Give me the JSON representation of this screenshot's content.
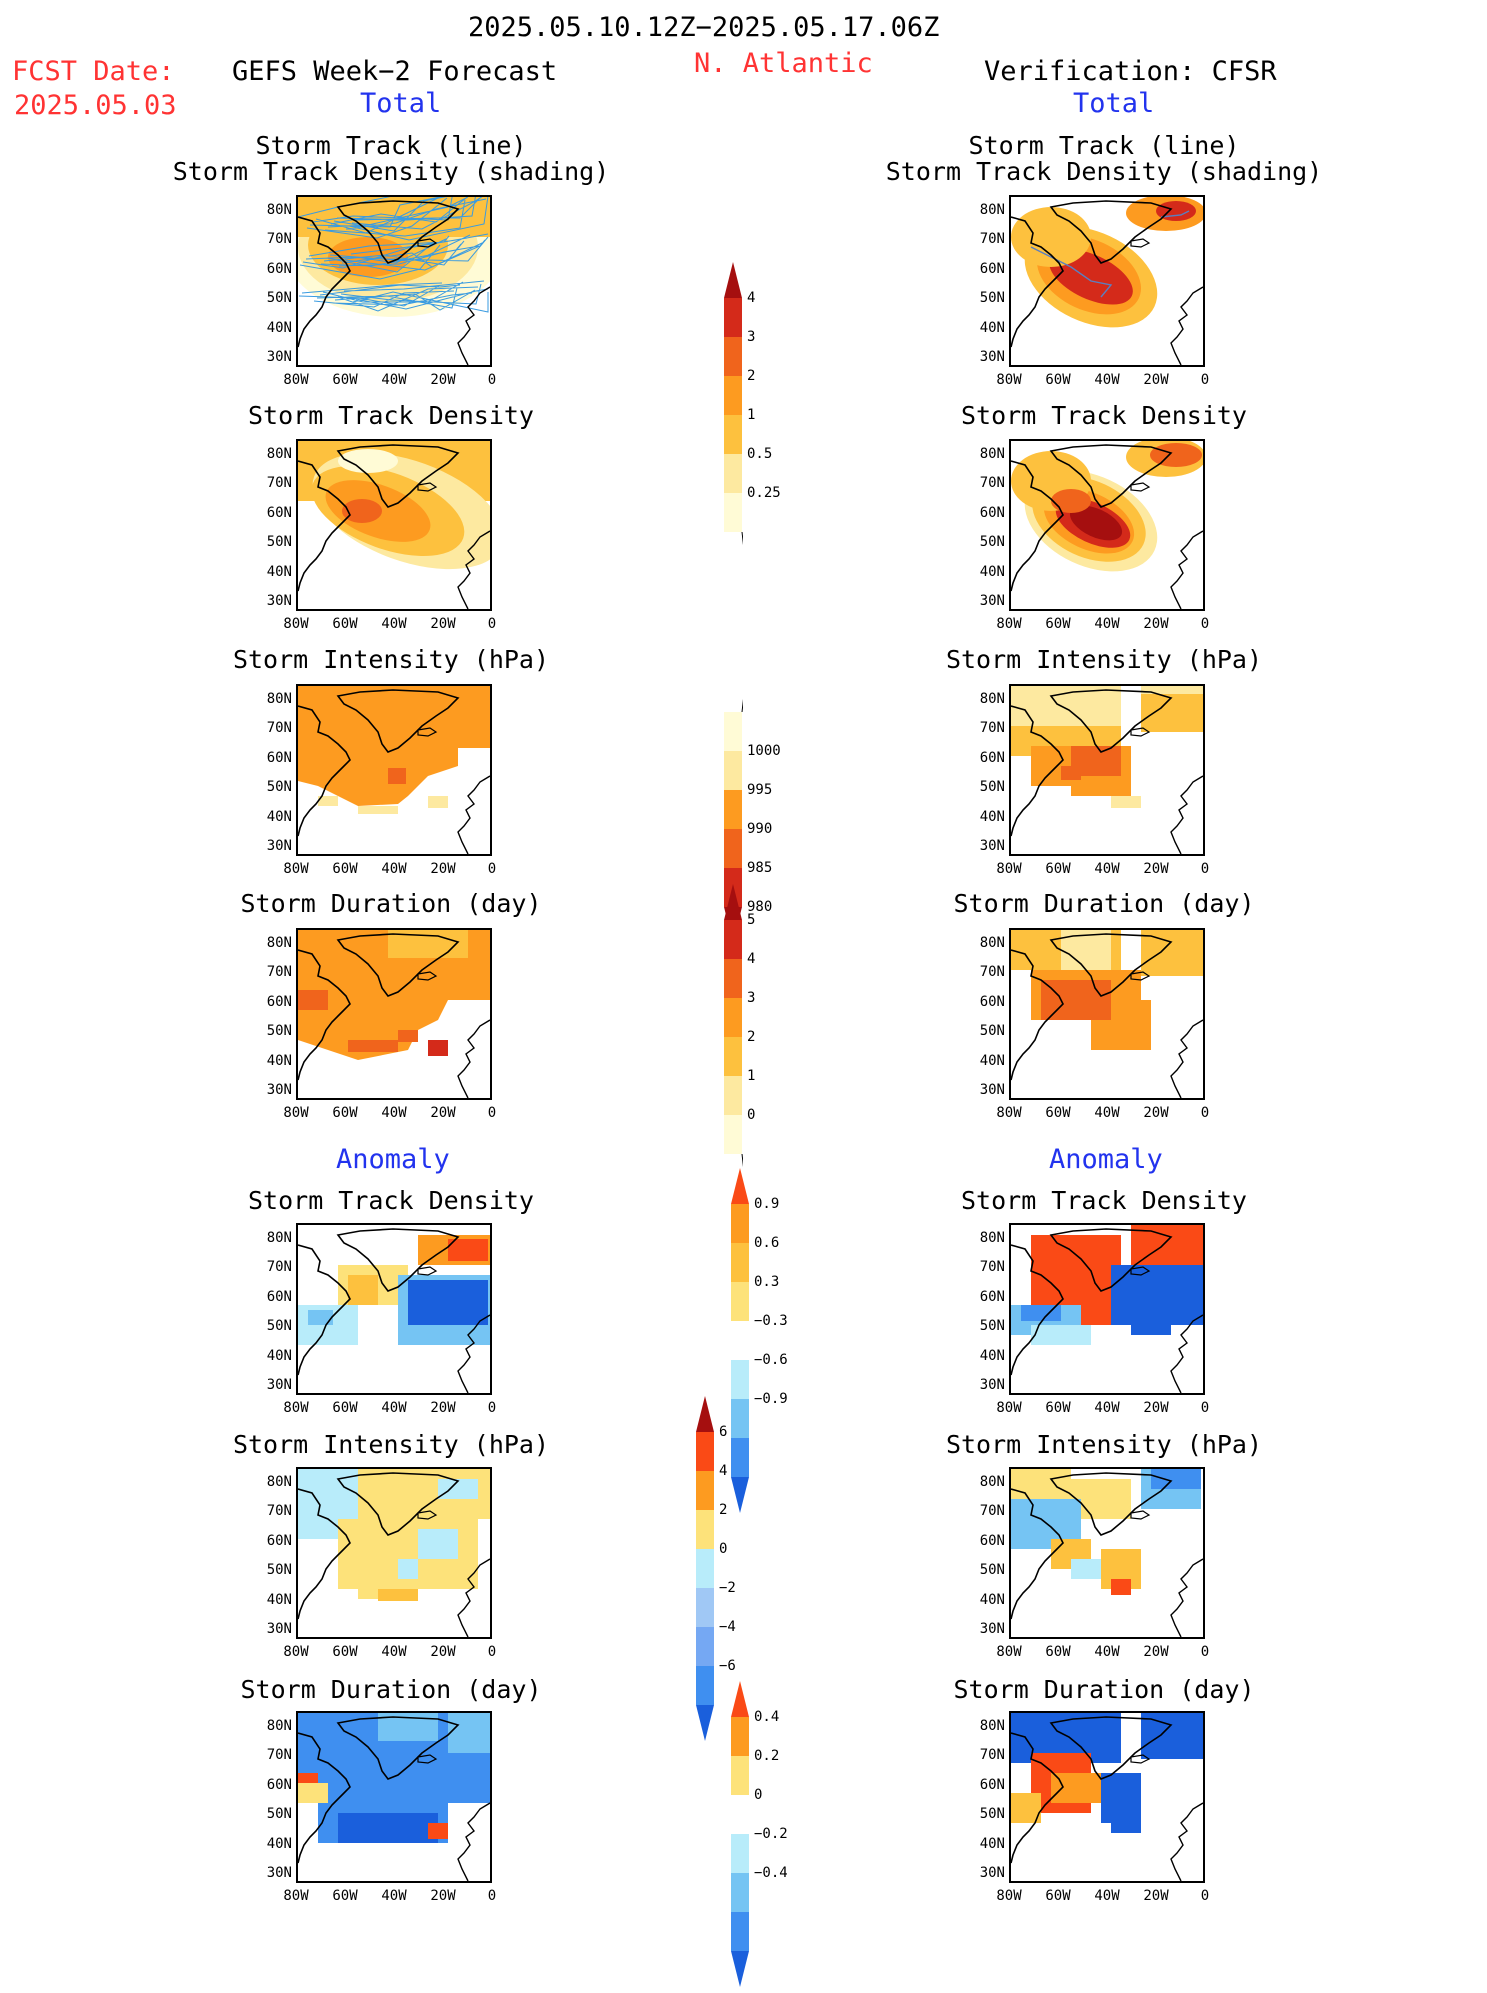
{
  "header": {
    "date_range": "2025.05.10.12Z−2025.05.17.06Z",
    "fcst_label": "FCST Date:",
    "fcst_date": "2025.05.03",
    "left_title": "GEFS Week−2 Forecast",
    "region": "N. Atlantic",
    "right_title": "Verification: CFSR",
    "total_left": "Total",
    "total_right": "Total",
    "anomaly_left": "Anomaly",
    "anomaly_right": "Anomaly"
  },
  "panel_titles": {
    "track_line": "Storm Track (line)",
    "track_shading": "Storm Track Density (shading)",
    "density": "Storm Track Density",
    "intensity": "Storm Intensity (hPa)",
    "duration": "Storm Duration (day)"
  },
  "axes": {
    "lat_labels": [
      "80N",
      "70N",
      "60N",
      "50N",
      "40N",
      "30N"
    ],
    "lon_labels": [
      "80W",
      "60W",
      "40W",
      "20W",
      "0"
    ]
  },
  "colorbars": {
    "total_density": {
      "labels": [
        "4",
        "3",
        "2",
        "1",
        "0.5",
        "0.25"
      ],
      "colors": [
        "#a50f0f",
        "#d42a1a",
        "#f0641c",
        "#fd9b20",
        "#fdc13e",
        "#fde9a0",
        "#fffbd6"
      ]
    },
    "total_intensity": {
      "labels": [
        "1000",
        "995",
        "990",
        "985",
        "980"
      ],
      "colors": [
        "#fffbd6",
        "#fde9a0",
        "#fd9b20",
        "#f0641c",
        "#d42a1a",
        "#a50f0f"
      ]
    },
    "total_duration": {
      "labels": [
        "5",
        "4",
        "3",
        "2",
        "1",
        "0"
      ],
      "colors": [
        "#a50f0f",
        "#d42a1a",
        "#f0641c",
        "#fd9b20",
        "#fdc13e",
        "#fde9a0",
        "#fffbd6"
      ]
    },
    "anom_density": {
      "labels": [
        "0.9",
        "0.6",
        "0.3",
        "−0.3",
        "−0.6",
        "−0.9"
      ],
      "colors": [
        "#fa4a16",
        "#fd9b20",
        "#fdc13e",
        "#fde27a",
        "#ffffff",
        "#b8ecfa",
        "#75c4f3",
        "#3f8ff0",
        "#1a5fdc"
      ]
    },
    "anom_intensity": {
      "labels": [
        "6",
        "4",
        "2",
        "0",
        "−2",
        "−4",
        "−6"
      ],
      "colors": [
        "#a50f0f",
        "#fa4a16",
        "#fd9b20",
        "#fde27a",
        "#b8ecfa",
        "#a0c8f5",
        "#75a8f3",
        "#3f8ff0",
        "#1a5fdc"
      ]
    },
    "anom_duration": {
      "labels": [
        "0.4",
        "0.2",
        "0",
        "−0.2",
        "−0.4"
      ],
      "colors": [
        "#fa4a16",
        "#fd9b20",
        "#fde27a",
        "#ffffff",
        "#b8ecfa",
        "#75c4f3",
        "#3f8ff0",
        "#1a5fdc"
      ]
    }
  }
}
